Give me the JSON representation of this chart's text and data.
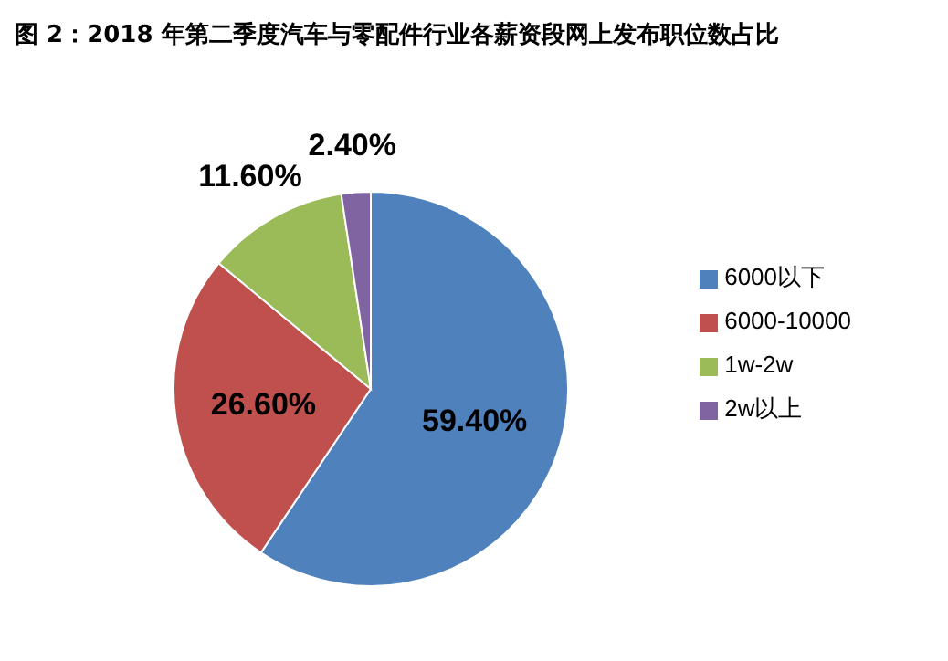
{
  "chart_data": {
    "type": "pie",
    "title": "图 2：2018 年第二季度汽车与零配件行业各薪资段网上发布职位数占比",
    "categories": [
      "6000以下",
      "6000-10000",
      "1w-2w",
      "2w以上"
    ],
    "values": [
      59.4,
      26.6,
      11.6,
      2.4
    ],
    "colors": [
      "#4f81bd",
      "#c0504d",
      "#9bbb59",
      "#8064a2"
    ],
    "value_labels": [
      "59.40%",
      "26.60%",
      "11.60%",
      "2.40%"
    ],
    "legend": "right"
  }
}
